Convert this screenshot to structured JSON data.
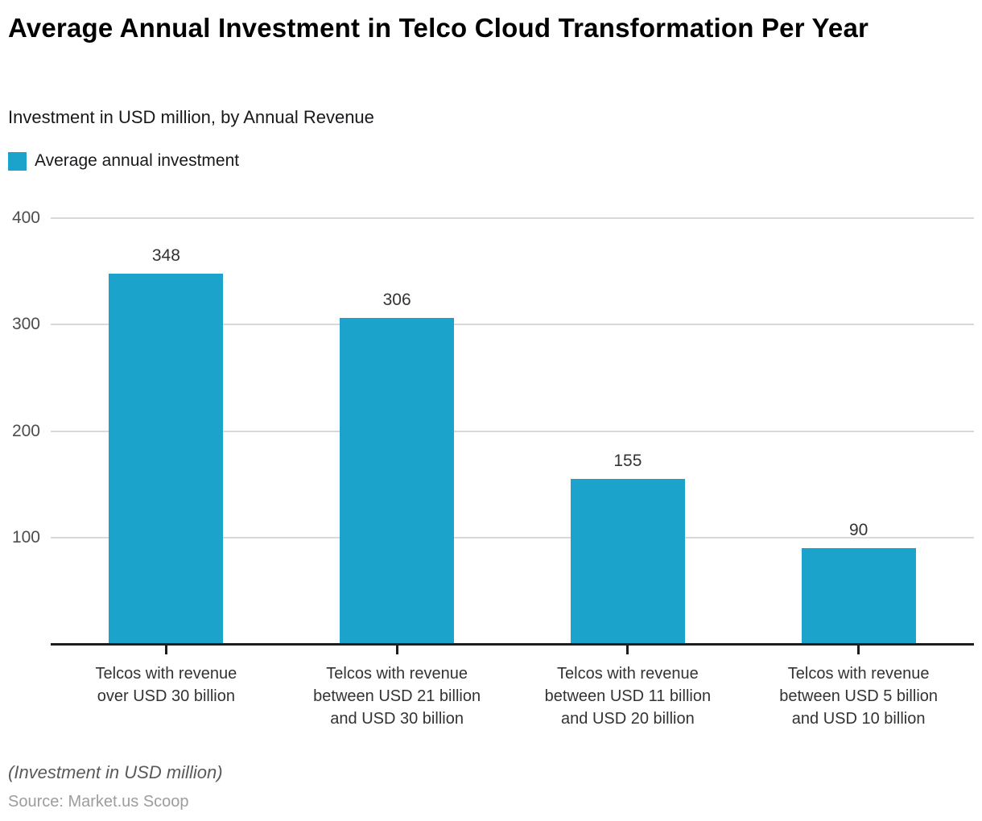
{
  "header": {
    "title": "Average Annual Investment in Telco Cloud Transformation Per Year",
    "subtitle": "Investment in USD million, by Annual Revenue"
  },
  "legend": {
    "label": "Average annual investment",
    "swatch_color": "#1ba3cc"
  },
  "footer": {
    "note": "(Investment in USD million)",
    "source": "Source: Market.us Scoop"
  },
  "chart_data": {
    "type": "bar",
    "title": "Average Annual Investment in Telco Cloud Transformation Per Year",
    "subtitle": "Investment in USD million, by Annual Revenue",
    "series_name": "Average annual investment",
    "categories": [
      "Telcos with revenue\nover USD 30 billion",
      "Telcos with revenue\nbetween USD 21 billion\nand USD 30 billion",
      "Telcos with revenue\nbetween USD 11 billion\nand USD 20 billion",
      "Telcos with revenue\nbetween USD 5 billion\nand USD 10 billion"
    ],
    "values": [
      348,
      306,
      155,
      90
    ],
    "yticks": [
      400,
      300,
      200,
      100
    ],
    "ylim": [
      0,
      400
    ],
    "xlabel": "",
    "ylabel": "",
    "grid": "horizontal",
    "legend_position": "top-left",
    "bar_color": "#1ba3cc",
    "value_labels": true
  }
}
